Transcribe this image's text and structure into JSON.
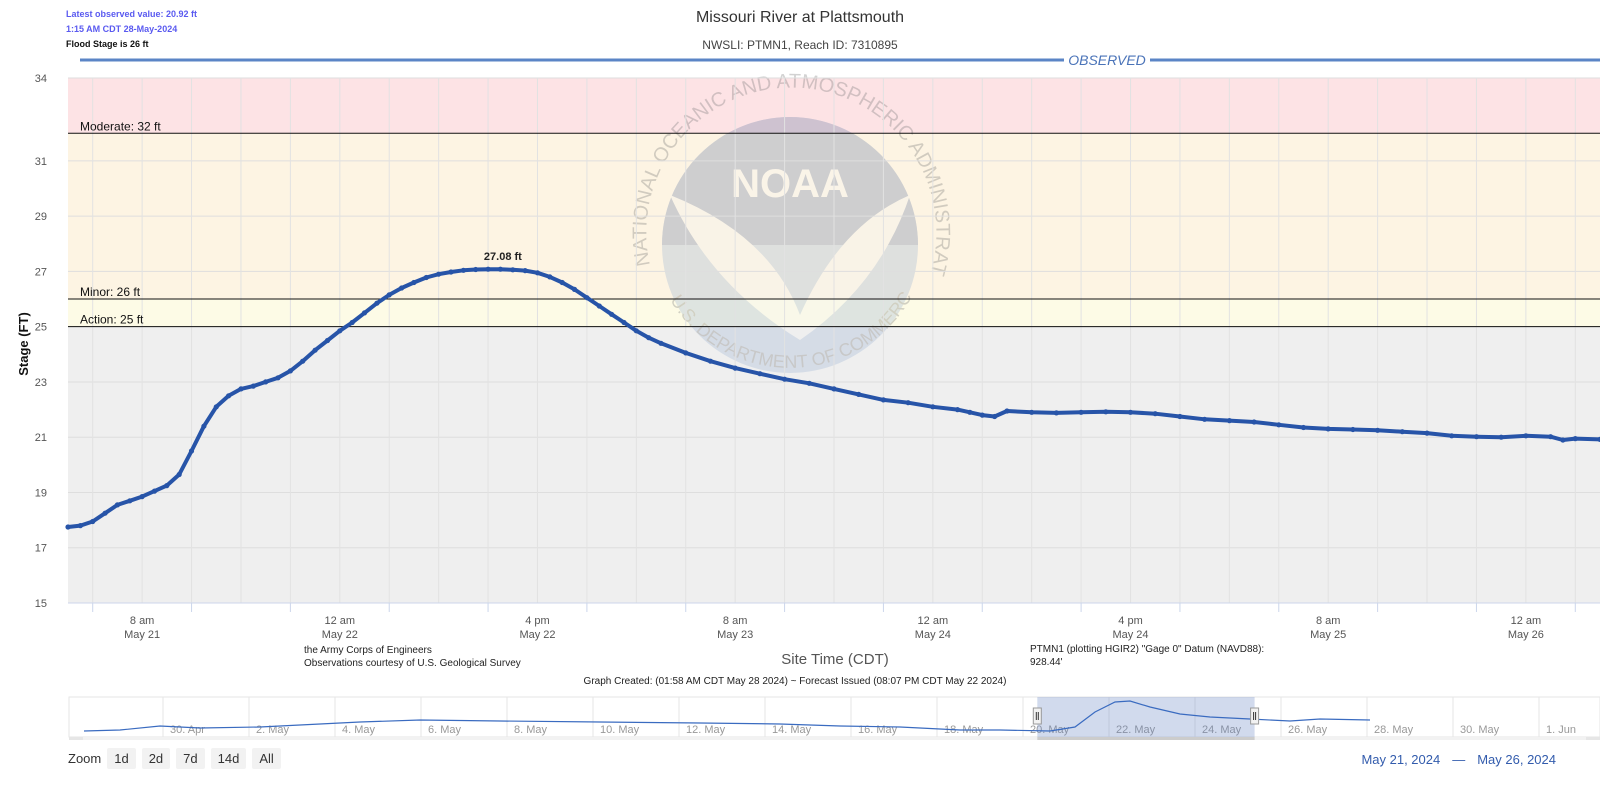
{
  "info": {
    "latest": "Latest observed value: 20.92 ft",
    "time": "1:15 AM CDT 28-May-2024",
    "flood": "Flood Stage is 26 ft"
  },
  "chart_data": {
    "type": "line",
    "title": "Missouri River at Plattsmouth",
    "subtitle": "NWSLI: PTMN1, Reach ID: 7310895",
    "band_label": "OBSERVED",
    "ylabel": "Stage (FT)",
    "xlabel": "Site Time (CDT)",
    "ylim": [
      15,
      34
    ],
    "y_ticks": [
      "34",
      "31",
      "29",
      "27",
      "25",
      "23",
      "21",
      "19",
      "17",
      "15"
    ],
    "x_ticks": [
      {
        "hour": 8,
        "time": "8 am",
        "date": "May 21"
      },
      {
        "hour": 24,
        "time": "12 am",
        "date": "May 22"
      },
      {
        "hour": 40,
        "time": "4 pm",
        "date": "May 22"
      },
      {
        "hour": 56,
        "time": "8 am",
        "date": "May 23"
      },
      {
        "hour": 72,
        "time": "12 am",
        "date": "May 24"
      },
      {
        "hour": 88,
        "time": "4 pm",
        "date": "May 24"
      },
      {
        "hour": 104,
        "time": "8 am",
        "date": "May 25"
      },
      {
        "hour": 120,
        "time": "12 am",
        "date": "May 26"
      }
    ],
    "x_range_hours_since_may21_midnight": [
      2,
      126
    ],
    "thresholds": [
      {
        "label": "Moderate: 32 ft",
        "value": 32
      },
      {
        "label": "Minor: 26 ft",
        "value": 26
      },
      {
        "label": "Action: 25 ft",
        "value": 25
      }
    ],
    "zones": [
      {
        "from": 32,
        "to": 34,
        "color": "#fde3e5"
      },
      {
        "from": 26,
        "to": 32,
        "color": "#fdf4e3"
      },
      {
        "from": 25,
        "to": 26,
        "color": "#fdfbe6"
      },
      {
        "from": 15,
        "to": 25,
        "color": "#efefef"
      }
    ],
    "peak": {
      "label": "27.08 ft",
      "x": 37.2,
      "y": 27.08
    },
    "series": [
      {
        "name": "Observed",
        "color": "#2754a8",
        "points": [
          [
            2,
            17.75
          ],
          [
            3,
            17.8
          ],
          [
            4,
            17.95
          ],
          [
            5,
            18.25
          ],
          [
            6,
            18.55
          ],
          [
            7,
            18.7
          ],
          [
            8,
            18.85
          ],
          [
            9,
            19.05
          ],
          [
            10,
            19.25
          ],
          [
            11,
            19.65
          ],
          [
            12,
            20.5
          ],
          [
            13,
            21.4
          ],
          [
            14,
            22.1
          ],
          [
            15,
            22.5
          ],
          [
            16,
            22.75
          ],
          [
            17,
            22.85
          ],
          [
            18,
            23.0
          ],
          [
            19,
            23.15
          ],
          [
            20,
            23.4
          ],
          [
            21,
            23.75
          ],
          [
            22,
            24.15
          ],
          [
            23,
            24.5
          ],
          [
            24,
            24.85
          ],
          [
            25,
            25.15
          ],
          [
            26,
            25.5
          ],
          [
            27,
            25.85
          ],
          [
            28,
            26.15
          ],
          [
            29,
            26.4
          ],
          [
            30,
            26.6
          ],
          [
            31,
            26.78
          ],
          [
            32,
            26.9
          ],
          [
            33,
            26.98
          ],
          [
            34,
            27.04
          ],
          [
            35,
            27.07
          ],
          [
            36,
            27.08
          ],
          [
            37,
            27.08
          ],
          [
            38,
            27.06
          ],
          [
            39,
            27.03
          ],
          [
            40,
            26.95
          ],
          [
            41,
            26.8
          ],
          [
            42,
            26.6
          ],
          [
            43,
            26.35
          ],
          [
            44,
            26.05
          ],
          [
            45,
            25.75
          ],
          [
            46,
            25.45
          ],
          [
            47,
            25.15
          ],
          [
            48,
            24.85
          ],
          [
            49,
            24.6
          ],
          [
            50,
            24.4
          ],
          [
            52,
            24.05
          ],
          [
            54,
            23.75
          ],
          [
            56,
            23.5
          ],
          [
            58,
            23.3
          ],
          [
            60,
            23.1
          ],
          [
            62,
            22.95
          ],
          [
            64,
            22.75
          ],
          [
            66,
            22.55
          ],
          [
            68,
            22.35
          ],
          [
            70,
            22.25
          ],
          [
            72,
            22.1
          ],
          [
            74,
            22.0
          ],
          [
            75,
            21.9
          ],
          [
            76,
            21.8
          ],
          [
            77,
            21.75
          ],
          [
            78,
            21.95
          ],
          [
            80,
            21.9
          ],
          [
            82,
            21.88
          ],
          [
            84,
            21.9
          ],
          [
            86,
            21.92
          ],
          [
            88,
            21.9
          ],
          [
            90,
            21.85
          ],
          [
            92,
            21.75
          ],
          [
            94,
            21.65
          ],
          [
            96,
            21.6
          ],
          [
            98,
            21.55
          ],
          [
            100,
            21.45
          ],
          [
            102,
            21.35
          ],
          [
            104,
            21.3
          ],
          [
            106,
            21.28
          ],
          [
            108,
            21.25
          ],
          [
            110,
            21.2
          ],
          [
            112,
            21.15
          ],
          [
            114,
            21.05
          ],
          [
            116,
            21.02
          ],
          [
            118,
            21.0
          ],
          [
            120,
            21.05
          ],
          [
            122,
            21.02
          ],
          [
            123,
            20.9
          ],
          [
            124,
            20.95
          ],
          [
            126,
            20.92
          ]
        ]
      }
    ],
    "credits_left": [
      "the Army Corps of Engineers",
      "Observations courtesy of U.S. Geological Survey"
    ],
    "credits_right": [
      "PTMN1 (plotting HGIR2) \"Gage 0\" Datum (NAVD88):",
      "928.44'"
    ],
    "footer": "Graph Created: (01:58 AM CDT May 28 2024) ~ Forecast Issued (08:07 PM CDT May 22 2024)",
    "watermark": {
      "text_top": "NATIONAL OCEANIC AND ATMOSPHERIC ADMINISTRATION",
      "text_bottom": "U.S. DEPARTMENT OF COMMERCE",
      "logo": "NOAA"
    },
    "navigator": {
      "labels": [
        "30. Apr",
        "2. May",
        "4. May",
        "6. May",
        "8. May",
        "10. May",
        "12. May",
        "14. May",
        "16. May",
        "18. May",
        "20. May",
        "22. May",
        "24. May",
        "26. May",
        "28. May",
        "30. May",
        "1. Jun"
      ],
      "selected_from_label_index": 10.05,
      "selected_to_label_index": 12.6
    }
  },
  "zoom": {
    "label": "Zoom",
    "buttons": [
      "1d",
      "2d",
      "7d",
      "14d",
      "All"
    ]
  },
  "range": {
    "from": "May 21, 2024",
    "sep": "—",
    "to": "May 26, 2024"
  },
  "colors": {
    "accent": "#335cad",
    "line": "#2754a8",
    "info": "#5a5af0"
  }
}
